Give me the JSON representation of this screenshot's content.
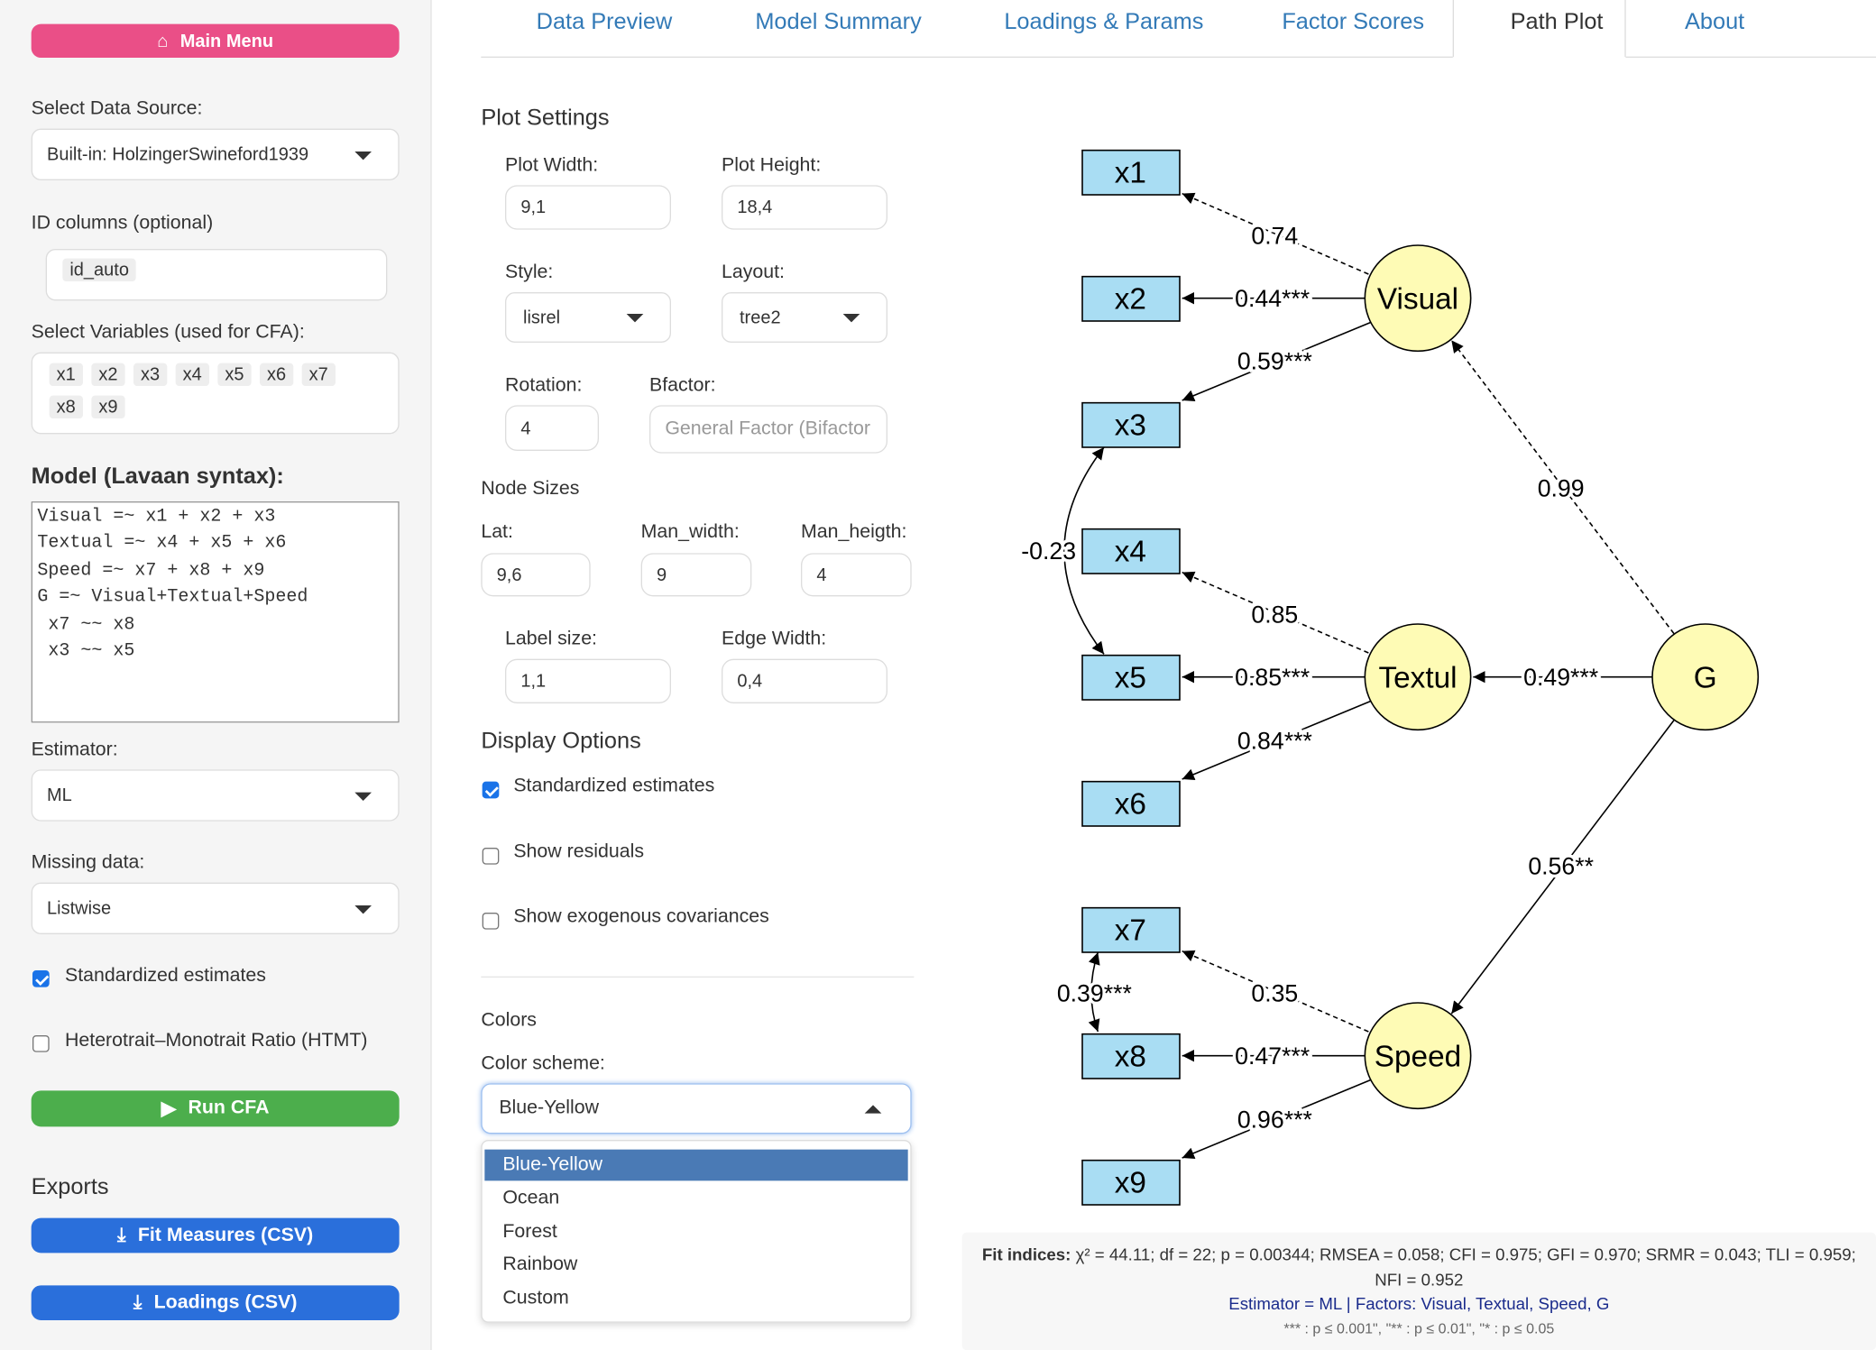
{
  "sidebar": {
    "main_menu": "Main Menu",
    "data_source_label": "Select Data Source:",
    "data_source": "Built-in: HolzingerSwineford1939",
    "id_label": "ID columns (optional)",
    "id_tags": [
      "id_auto"
    ],
    "vars_label": "Select Variables (used for CFA):",
    "vars": [
      "x1",
      "x2",
      "x3",
      "x4",
      "x5",
      "x6",
      "x7",
      "x8",
      "x9"
    ],
    "model_label": "Model (Lavaan syntax):",
    "model_lines": [
      "Visual =~ x1 + x2 + x3",
      "Textual =~ x4 + x5 + x6",
      "Speed =~ x7 + x8 + x9",
      "G =~ Visual+Textual+Speed",
      " x7 ~~ x8",
      " x3 ~~ x5"
    ],
    "estimator_label": "Estimator:",
    "estimator": "ML",
    "missing_label": "Missing data:",
    "missing": "Listwise",
    "std_check": {
      "label": "Standardized estimates",
      "checked": true
    },
    "htmt_check": {
      "label": "Heterotrait–Monotrait Ratio (HTMT)",
      "checked": false
    },
    "run": "Run CFA",
    "exports_label": "Exports",
    "export_buttons": [
      "Fit Measures (CSV)",
      "Loadings (CSV)"
    ]
  },
  "tabs": [
    "Data Preview",
    "Model Summary",
    "Loadings & Params",
    "Factor Scores",
    "Path Plot",
    "About"
  ],
  "settings": {
    "title": "Plot Settings",
    "plot_width": {
      "label": "Plot Width:",
      "value": "9,1"
    },
    "plot_height": {
      "label": "Plot Height:",
      "value": "18,4"
    },
    "style": {
      "label": "Style:",
      "value": "lisrel"
    },
    "layout": {
      "label": "Layout:",
      "value": "tree2"
    },
    "rotation": {
      "label": "Rotation:",
      "value": "4"
    },
    "bfactor": {
      "label": "Bfactor:",
      "placeholder": "General Factor (Bifactor"
    },
    "node_sizes": "Node Sizes",
    "lat": {
      "label": "Lat:",
      "value": "9,6"
    },
    "man_width": {
      "label": "Man_width:",
      "value": "9"
    },
    "man_height": {
      "label": "Man_heigth:",
      "value": "4"
    },
    "label_size": {
      "label": "Label size:",
      "value": "1,1"
    },
    "edge_width": {
      "label": "Edge Width:",
      "value": "0,4"
    },
    "display_title": "Display Options",
    "display_options": [
      {
        "label": "Standardized estimates",
        "checked": true
      },
      {
        "label": "Show residuals",
        "checked": false
      },
      {
        "label": "Show exogenous covariances",
        "checked": false
      }
    ],
    "colors_title": "Colors",
    "scheme_label": "Color scheme:",
    "scheme": "Blue-Yellow",
    "scheme_options": [
      "Blue-Yellow",
      "Ocean",
      "Forest",
      "Rainbow",
      "Custom"
    ]
  },
  "diagram": {
    "manifest": [
      "x1",
      "x2",
      "x3",
      "x4",
      "x5",
      "x6",
      "x7",
      "x8",
      "x9"
    ],
    "latent": [
      "Visual",
      "Textul",
      "Speed",
      "G"
    ],
    "edges": [
      "0.74",
      "0.44***",
      "0.59***",
      "0.85",
      "0.85***",
      "0.84***",
      "0.35",
      "0.47***",
      "0.96***",
      "0.99",
      "0.49***",
      "0.56**",
      "-0.23",
      "0.39***"
    ]
  },
  "fit": {
    "heading": "Fit indices:",
    "text": "χ² = 44.11; df = 22; p = 0.00344; RMSEA = 0.058; CFI = 0.975; GFI = 0.970; SRMR = 0.043; TLI = 0.959; NFI = 0.952",
    "estimator_line": "Estimator = ML | Factors: Visual, Textual, Speed, G",
    "signif": "*** : p ≤ 0.001\", \"** : p ≤ 0.01\", \"* : p ≤ 0.05"
  }
}
